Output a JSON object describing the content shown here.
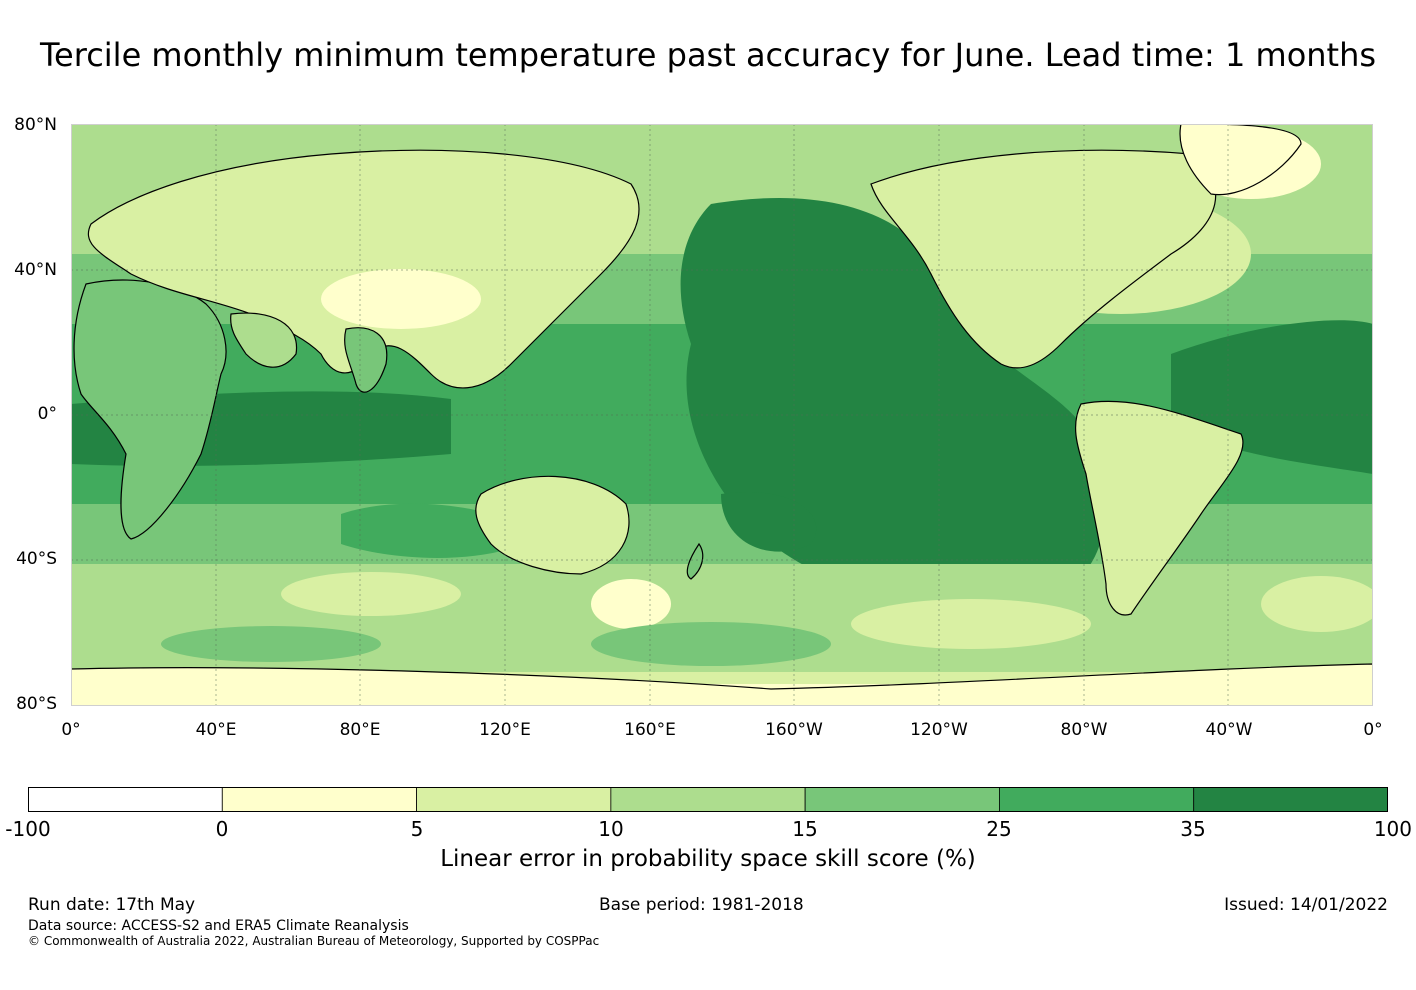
{
  "title": "Tercile monthly minimum temperature past accuracy for June. Lead time: 1 months",
  "map": {
    "lat_labels": [
      "80°N",
      "40°N",
      "0°",
      "40°S",
      "80°S"
    ],
    "lon_labels": [
      "0°",
      "40°E",
      "80°E",
      "120°E",
      "160°E",
      "160°W",
      "120°W",
      "80°W",
      "40°W",
      "0°"
    ],
    "lon_range": [
      0,
      360
    ],
    "lat_range": [
      -80,
      80
    ],
    "dominant_pattern": "highest skill (35-100) over tropical and eastern Pacific, Atlantic and Indian Ocean tropics; lower skill (0-10) over high-latitude land and Southern Ocean"
  },
  "colorbar": {
    "ticks": [
      "-100",
      "0",
      "5",
      "10",
      "15",
      "25",
      "35",
      "100"
    ],
    "bins": [
      {
        "from": -100,
        "to": 0,
        "color": "#ffffff"
      },
      {
        "from": 0,
        "to": 5,
        "color": "#ffffcc"
      },
      {
        "from": 5,
        "to": 10,
        "color": "#d9f0a3"
      },
      {
        "from": 10,
        "to": 15,
        "color": "#addd8e"
      },
      {
        "from": 15,
        "to": 25,
        "color": "#78c679"
      },
      {
        "from": 25,
        "to": 35,
        "color": "#41ab5d"
      },
      {
        "from": 35,
        "to": 100,
        "color": "#238443"
      }
    ],
    "label": "Linear error in probability space skill score (%)"
  },
  "footer": {
    "run_date": "Run date: 17th May",
    "base_period": "Base period: 1981-2018",
    "issued": "Issued: 14/01/2022",
    "data_source": "Data source: ACCESS-S2 and ERA5 Climate Reanalysis",
    "copyright": "© Commonwealth of Australia 2022, Australian Bureau of Meteorology, Supported by COSPPac"
  }
}
